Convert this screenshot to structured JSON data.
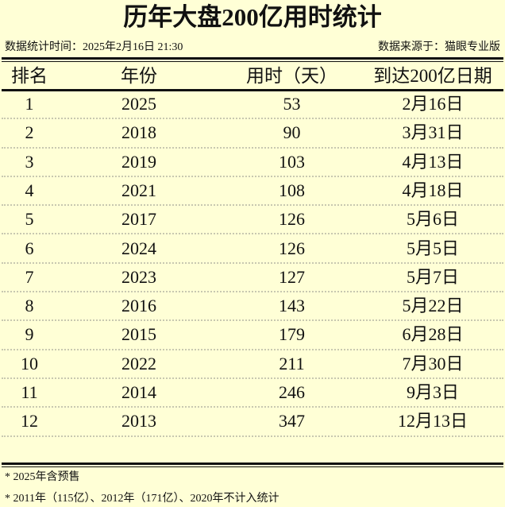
{
  "title": "历年大盘200亿用时统计",
  "stat_time": "数据统计时间：2025年2月16日 21:30",
  "source": "数据来源于：猫眼专业版",
  "columns": [
    "排名",
    "年份",
    "用时（天）",
    "到达200亿日期"
  ],
  "rows": [
    [
      "1",
      "2025",
      "53",
      "2月16日"
    ],
    [
      "2",
      "2018",
      "90",
      "3月31日"
    ],
    [
      "3",
      "2019",
      "103",
      "4月13日"
    ],
    [
      "4",
      "2021",
      "108",
      "4月18日"
    ],
    [
      "5",
      "2017",
      "126",
      "5月6日"
    ],
    [
      "6",
      "2024",
      "126",
      "5月5日"
    ],
    [
      "7",
      "2023",
      "127",
      "5月7日"
    ],
    [
      "8",
      "2016",
      "143",
      "5月22日"
    ],
    [
      "9",
      "2015",
      "179",
      "6月28日"
    ],
    [
      "10",
      "2022",
      "211",
      "7月30日"
    ],
    [
      "11",
      "2014",
      "246",
      "9月3日"
    ],
    [
      "12",
      "2013",
      "347",
      "12月13日"
    ]
  ],
  "notes": [
    "* 2025年含预售",
    "* 2011年（115亿）、2012年（171亿）、2020年不计入统计"
  ]
}
